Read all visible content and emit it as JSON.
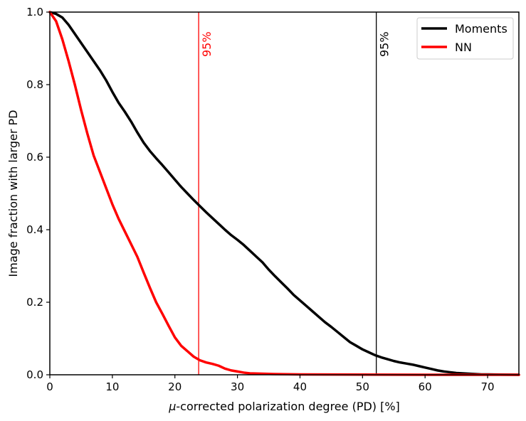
{
  "chart_data": {
    "type": "line",
    "title": "",
    "xlabel_symbol": "μ",
    "xlabel_rest": "-corrected polarization degree (PD) [%]",
    "ylabel": "Image fraction with larger PD",
    "xlim": [
      0,
      75
    ],
    "ylim": [
      0,
      1.0
    ],
    "x_ticks": [
      0,
      10,
      20,
      30,
      40,
      50,
      60,
      70
    ],
    "y_ticks": [
      0.0,
      0.2,
      0.4,
      0.6,
      0.8,
      1.0
    ],
    "y_tick_labels": [
      "0.0",
      "0.2",
      "0.4",
      "0.6",
      "0.8",
      "1.0"
    ],
    "grid": false,
    "legend_position": "top-right",
    "series": [
      {
        "name": "Moments",
        "color": "#000000",
        "x": [
          0,
          1,
          2,
          3,
          4,
          5,
          6,
          7,
          8,
          9,
          10,
          11,
          12,
          13,
          14,
          15,
          16,
          17,
          18,
          19,
          20,
          21,
          22,
          23,
          24,
          25,
          26,
          27,
          28,
          29,
          30,
          31,
          32,
          33,
          34,
          35,
          36,
          37,
          38,
          39,
          40,
          41,
          42,
          43,
          44,
          45,
          46,
          47,
          48,
          49,
          50,
          51,
          52,
          53,
          54,
          55,
          56,
          57,
          58,
          59,
          60,
          61,
          62,
          63,
          64,
          65,
          66,
          67,
          68,
          69,
          70,
          72,
          75
        ],
        "y": [
          1.0,
          0.995,
          0.985,
          0.965,
          0.94,
          0.915,
          0.89,
          0.865,
          0.84,
          0.812,
          0.78,
          0.75,
          0.725,
          0.698,
          0.668,
          0.64,
          0.617,
          0.597,
          0.578,
          0.558,
          0.538,
          0.518,
          0.5,
          0.482,
          0.465,
          0.448,
          0.432,
          0.416,
          0.4,
          0.385,
          0.372,
          0.358,
          0.342,
          0.326,
          0.31,
          0.29,
          0.272,
          0.255,
          0.238,
          0.22,
          0.205,
          0.19,
          0.175,
          0.16,
          0.145,
          0.132,
          0.118,
          0.104,
          0.09,
          0.08,
          0.07,
          0.062,
          0.054,
          0.048,
          0.043,
          0.038,
          0.034,
          0.031,
          0.028,
          0.024,
          0.02,
          0.016,
          0.012,
          0.009,
          0.007,
          0.005,
          0.004,
          0.003,
          0.002,
          0.001,
          0.001,
          0.0005,
          0.0
        ]
      },
      {
        "name": "NN",
        "color": "#ff0000",
        "x": [
          0,
          1,
          2,
          3,
          4,
          5,
          6,
          7,
          8,
          9,
          10,
          11,
          12,
          13,
          14,
          15,
          16,
          17,
          18,
          19,
          20,
          21,
          22,
          23,
          24,
          25,
          26,
          27,
          28,
          29,
          30,
          31,
          32,
          34,
          36,
          40,
          50,
          60,
          75
        ],
        "y": [
          1.0,
          0.975,
          0.925,
          0.865,
          0.8,
          0.73,
          0.665,
          0.605,
          0.56,
          0.515,
          0.47,
          0.43,
          0.395,
          0.36,
          0.325,
          0.282,
          0.24,
          0.2,
          0.168,
          0.135,
          0.103,
          0.08,
          0.065,
          0.05,
          0.04,
          0.034,
          0.03,
          0.025,
          0.017,
          0.012,
          0.009,
          0.006,
          0.004,
          0.003,
          0.002,
          0.001,
          0.0005,
          0.0,
          0.0
        ]
      }
    ],
    "annotations": [
      {
        "x": 23.8,
        "label": "95%",
        "color": "#ff0000"
      },
      {
        "x": 52.2,
        "label": "95%",
        "color": "#000000"
      }
    ]
  }
}
